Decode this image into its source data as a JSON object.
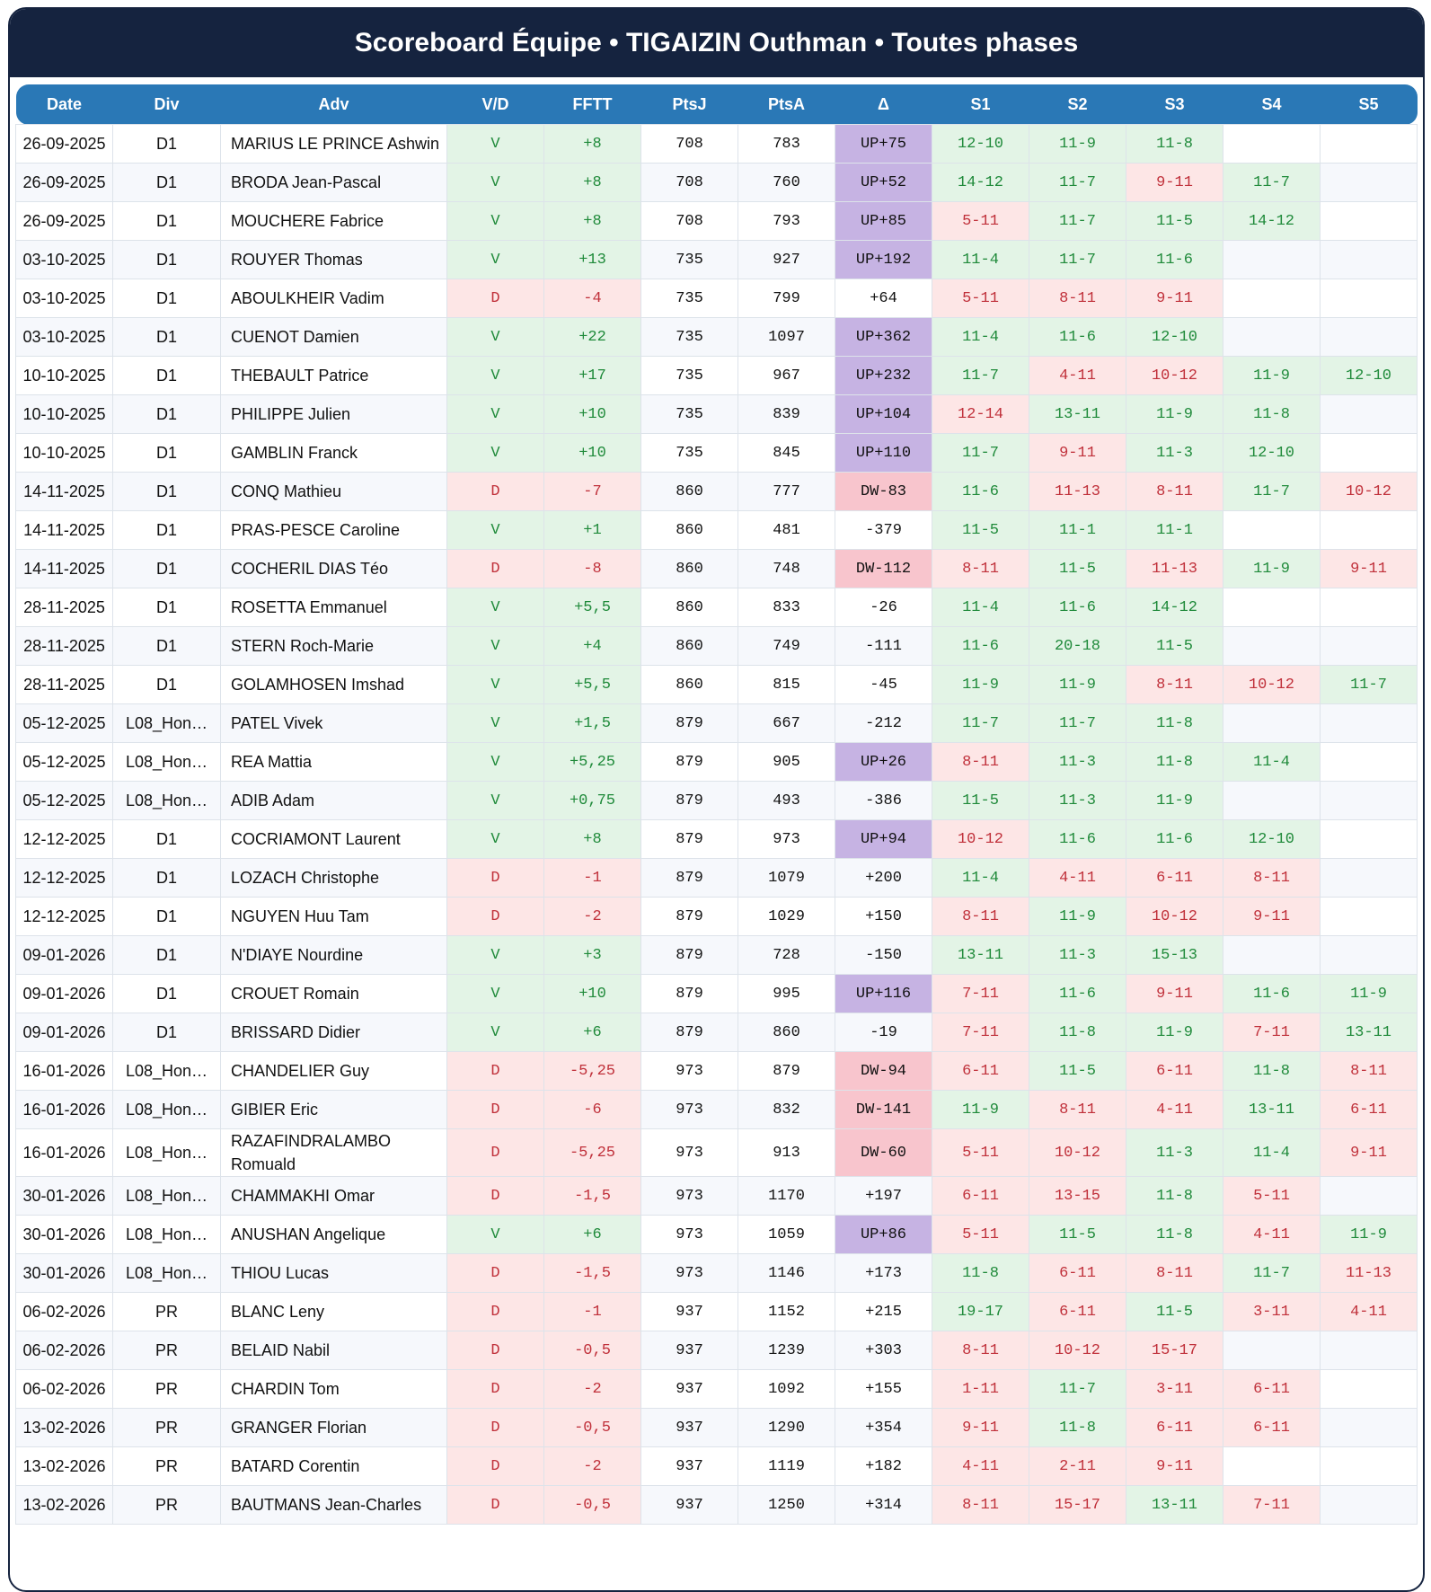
{
  "header": {
    "title": "Scoreboard Équipe • TIGAIZIN Outhman • Toutes phases"
  },
  "table": {
    "columns": [
      "Date",
      "Div",
      "Adv",
      "V/D",
      "FFTT",
      "PtsJ",
      "PtsA",
      "Δ",
      "S1",
      "S2",
      "S3",
      "S4",
      "S5"
    ],
    "rows": [
      [
        "26-09-2025",
        "D1",
        "MARIUS LE PRINCE Ashwin",
        "V",
        "+8",
        "708",
        "783",
        "UP+75",
        "12-10",
        "11-9",
        "11-8",
        null,
        null
      ],
      [
        "26-09-2025",
        "D1",
        "BRODA Jean-Pascal",
        "V",
        "+8",
        "708",
        "760",
        "UP+52",
        "14-12",
        "11-7",
        "9-11",
        "11-7",
        null
      ],
      [
        "26-09-2025",
        "D1",
        "MOUCHERE Fabrice",
        "V",
        "+8",
        "708",
        "793",
        "UP+85",
        "5-11",
        "11-7",
        "11-5",
        "14-12",
        null
      ],
      [
        "03-10-2025",
        "D1",
        "ROUYER Thomas",
        "V",
        "+13",
        "735",
        "927",
        "UP+192",
        "11-4",
        "11-7",
        "11-6",
        null,
        null
      ],
      [
        "03-10-2025",
        "D1",
        "ABOULKHEIR Vadim",
        "D",
        "-4",
        "735",
        "799",
        "+64",
        "5-11",
        "8-11",
        "9-11",
        null,
        null
      ],
      [
        "03-10-2025",
        "D1",
        "CUENOT Damien",
        "V",
        "+22",
        "735",
        "1097",
        "UP+362",
        "11-4",
        "11-6",
        "12-10",
        null,
        null
      ],
      [
        "10-10-2025",
        "D1",
        "THEBAULT Patrice",
        "V",
        "+17",
        "735",
        "967",
        "UP+232",
        "11-7",
        "4-11",
        "10-12",
        "11-9",
        "12-10"
      ],
      [
        "10-10-2025",
        "D1",
        "PHILIPPE Julien",
        "V",
        "+10",
        "735",
        "839",
        "UP+104",
        "12-14",
        "13-11",
        "11-9",
        "11-8",
        null
      ],
      [
        "10-10-2025",
        "D1",
        "GAMBLIN Franck",
        "V",
        "+10",
        "735",
        "845",
        "UP+110",
        "11-7",
        "9-11",
        "11-3",
        "12-10",
        null
      ],
      [
        "14-11-2025",
        "D1",
        "CONQ Mathieu",
        "D",
        "-7",
        "860",
        "777",
        "DW-83",
        "11-6",
        "11-13",
        "8-11",
        "11-7",
        "10-12"
      ],
      [
        "14-11-2025",
        "D1",
        "PRAS-PESCE Caroline",
        "V",
        "+1",
        "860",
        "481",
        "-379",
        "11-5",
        "11-1",
        "11-1",
        null,
        null
      ],
      [
        "14-11-2025",
        "D1",
        "COCHERIL DIAS Téo",
        "D",
        "-8",
        "860",
        "748",
        "DW-112",
        "8-11",
        "11-5",
        "11-13",
        "11-9",
        "9-11"
      ],
      [
        "28-11-2025",
        "D1",
        "ROSETTA Emmanuel",
        "V",
        "+5,5",
        "860",
        "833",
        "-26",
        "11-4",
        "11-6",
        "14-12",
        null,
        null
      ],
      [
        "28-11-2025",
        "D1",
        "STERN Roch-Marie",
        "V",
        "+4",
        "860",
        "749",
        "-111",
        "11-6",
        "20-18",
        "11-5",
        null,
        null
      ],
      [
        "28-11-2025",
        "D1",
        "GOLAMHOSEN Imshad",
        "V",
        "+5,5",
        "860",
        "815",
        "-45",
        "11-9",
        "11-9",
        "8-11",
        "10-12",
        "11-7"
      ],
      [
        "05-12-2025",
        "L08_Hon…",
        "PATEL Vivek",
        "V",
        "+1,5",
        "879",
        "667",
        "-212",
        "11-7",
        "11-7",
        "11-8",
        null,
        null
      ],
      [
        "05-12-2025",
        "L08_Hon…",
        "REA Mattia",
        "V",
        "+5,25",
        "879",
        "905",
        "UP+26",
        "8-11",
        "11-3",
        "11-8",
        "11-4",
        null
      ],
      [
        "05-12-2025",
        "L08_Hon…",
        "ADIB Adam",
        "V",
        "+0,75",
        "879",
        "493",
        "-386",
        "11-5",
        "11-3",
        "11-9",
        null,
        null
      ],
      [
        "12-12-2025",
        "D1",
        "COCRIAMONT Laurent",
        "V",
        "+8",
        "879",
        "973",
        "UP+94",
        "10-12",
        "11-6",
        "11-6",
        "12-10",
        null
      ],
      [
        "12-12-2025",
        "D1",
        "LOZACH Christophe",
        "D",
        "-1",
        "879",
        "1079",
        "+200",
        "11-4",
        "4-11",
        "6-11",
        "8-11",
        null
      ],
      [
        "12-12-2025",
        "D1",
        "NGUYEN Huu Tam",
        "D",
        "-2",
        "879",
        "1029",
        "+150",
        "8-11",
        "11-9",
        "10-12",
        "9-11",
        null
      ],
      [
        "09-01-2026",
        "D1",
        "N'DIAYE Nourdine",
        "V",
        "+3",
        "879",
        "728",
        "-150",
        "13-11",
        "11-3",
        "15-13",
        null,
        null
      ],
      [
        "09-01-2026",
        "D1",
        "CROUET Romain",
        "V",
        "+10",
        "879",
        "995",
        "UP+116",
        "7-11",
        "11-6",
        "9-11",
        "11-6",
        "11-9"
      ],
      [
        "09-01-2026",
        "D1",
        "BRISSARD Didier",
        "V",
        "+6",
        "879",
        "860",
        "-19",
        "7-11",
        "11-8",
        "11-9",
        "7-11",
        "13-11"
      ],
      [
        "16-01-2026",
        "L08_Hon…",
        "CHANDELIER Guy",
        "D",
        "-5,25",
        "973",
        "879",
        "DW-94",
        "6-11",
        "11-5",
        "6-11",
        "11-8",
        "8-11"
      ],
      [
        "16-01-2026",
        "L08_Hon…",
        "GIBIER Eric",
        "D",
        "-6",
        "973",
        "832",
        "DW-141",
        "11-9",
        "8-11",
        "4-11",
        "13-11",
        "6-11"
      ],
      [
        "16-01-2026",
        "L08_Hon…",
        "RAZAFINDRALAMBO Romuald",
        "D",
        "-5,25",
        "973",
        "913",
        "DW-60",
        "5-11",
        "10-12",
        "11-3",
        "11-4",
        "9-11"
      ],
      [
        "30-01-2026",
        "L08_Hon…",
        "CHAMMAKHI Omar",
        "D",
        "-1,5",
        "973",
        "1170",
        "+197",
        "6-11",
        "13-15",
        "11-8",
        "5-11",
        null
      ],
      [
        "30-01-2026",
        "L08_Hon…",
        "ANUSHAN Angelique",
        "V",
        "+6",
        "973",
        "1059",
        "UP+86",
        "5-11",
        "11-5",
        "11-8",
        "4-11",
        "11-9"
      ],
      [
        "30-01-2026",
        "L08_Hon…",
        "THIOU Lucas",
        "D",
        "-1,5",
        "973",
        "1146",
        "+173",
        "11-8",
        "6-11",
        "8-11",
        "11-7",
        "11-13"
      ],
      [
        "06-02-2026",
        "PR",
        "BLANC Leny",
        "D",
        "-1",
        "937",
        "1152",
        "+215",
        "19-17",
        "6-11",
        "11-5",
        "3-11",
        "4-11"
      ],
      [
        "06-02-2026",
        "PR",
        "BELAID Nabil",
        "D",
        "-0,5",
        "937",
        "1239",
        "+303",
        "8-11",
        "10-12",
        "15-17",
        null,
        null
      ],
      [
        "06-02-2026",
        "PR",
        "CHARDIN Tom",
        "D",
        "-2",
        "937",
        "1092",
        "+155",
        "1-11",
        "11-7",
        "3-11",
        "6-11",
        null
      ],
      [
        "13-02-2026",
        "PR",
        "GRANGER Florian",
        "D",
        "-0,5",
        "937",
        "1290",
        "+354",
        "9-11",
        "11-8",
        "6-11",
        "6-11",
        null
      ],
      [
        "13-02-2026",
        "PR",
        "BATARD Corentin",
        "D",
        "-2",
        "937",
        "1119",
        "+182",
        "4-11",
        "2-11",
        "9-11",
        null,
        null
      ],
      [
        "13-02-2026",
        "PR",
        "BAUTMANS Jean-Charles",
        "D",
        "-0,5",
        "937",
        "1250",
        "+314",
        "8-11",
        "15-17",
        "13-11",
        "7-11",
        null
      ]
    ]
  }
}
